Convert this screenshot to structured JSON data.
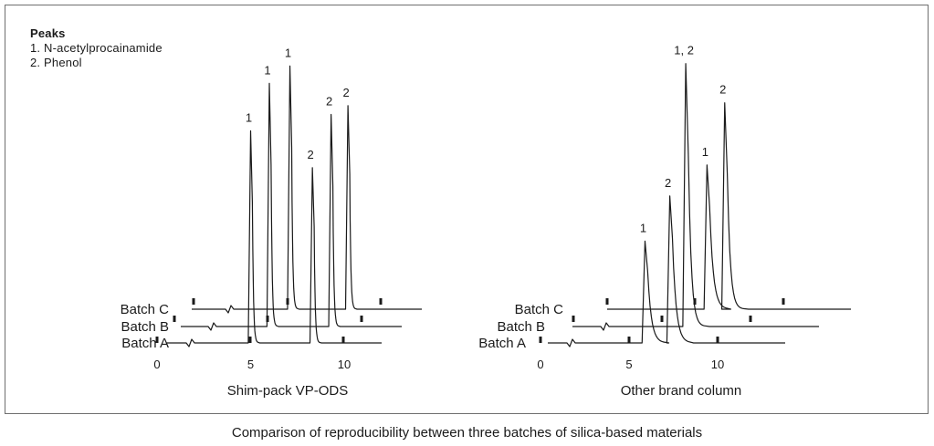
{
  "legend": {
    "title": "Peaks",
    "items": [
      "1. N-acetylprocainamide",
      "2. Phenol"
    ]
  },
  "caption": "Comparison of reproducibility between three batches of silica-based materials",
  "chart_data": [
    {
      "type": "line",
      "title": "Shim-pack VP-ODS",
      "xlabel": "",
      "ylabel": "",
      "x_ticks": [
        0,
        5,
        10
      ],
      "batches": [
        {
          "name": "Batch A",
          "peaks": [
            {
              "label": "1",
              "x": 5.0,
              "height": 0.75
            },
            {
              "label": "2",
              "x": 8.3,
              "height": 0.62
            }
          ]
        },
        {
          "name": "Batch B",
          "peaks": [
            {
              "label": "1",
              "x": 6.0,
              "height": 0.86
            },
            {
              "label": "2",
              "x": 9.3,
              "height": 0.75
            }
          ]
        },
        {
          "name": "Batch C",
          "peaks": [
            {
              "label": "1",
              "x": 7.1,
              "height": 0.86
            },
            {
              "label": "2",
              "x": 10.2,
              "height": 0.72
            }
          ]
        }
      ]
    },
    {
      "type": "line",
      "title": "Other brand column",
      "xlabel": "",
      "ylabel": "",
      "x_ticks": [
        0,
        5,
        10
      ],
      "batches": [
        {
          "name": "Batch A",
          "peaks": [
            {
              "label": "1",
              "x": 5.9,
              "height": 0.36
            },
            {
              "label": "2",
              "x": 7.3,
              "height": 0.52
            }
          ]
        },
        {
          "name": "Batch B",
          "peaks": [
            {
              "label": "1, 2",
              "x": 8.2,
              "height": 0.93
            }
          ]
        },
        {
          "name": "Batch C",
          "peaks": [
            {
              "label": "1",
              "x": 9.4,
              "height": 0.51
            },
            {
              "label": "2",
              "x": 10.4,
              "height": 0.73
            }
          ]
        }
      ]
    }
  ]
}
